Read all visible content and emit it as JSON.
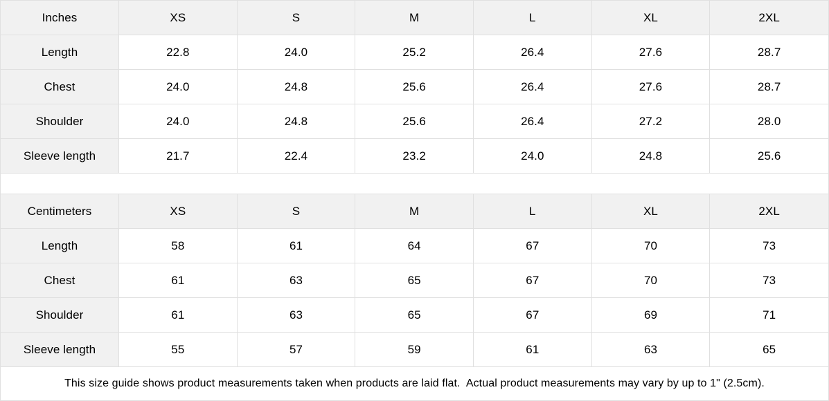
{
  "colors": {
    "header_bg": "#f1f1f1",
    "label_column_bg": "#f1f1f1",
    "cell_bg": "#ffffff",
    "border": "#e0e0e0",
    "text": "#000000"
  },
  "size_guide": {
    "inches": {
      "unit_label": "Inches",
      "sizes": [
        "XS",
        "S",
        "M",
        "L",
        "XL",
        "2XL"
      ],
      "rows": [
        {
          "label": "Length",
          "values": [
            "22.8",
            "24.0",
            "25.2",
            "26.4",
            "27.6",
            "28.7"
          ]
        },
        {
          "label": "Chest",
          "values": [
            "24.0",
            "24.8",
            "25.6",
            "26.4",
            "27.6",
            "28.7"
          ]
        },
        {
          "label": "Shoulder",
          "values": [
            "24.0",
            "24.8",
            "25.6",
            "26.4",
            "27.2",
            "28.0"
          ]
        },
        {
          "label": "Sleeve length",
          "values": [
            "21.7",
            "22.4",
            "23.2",
            "24.0",
            "24.8",
            "25.6"
          ]
        }
      ]
    },
    "centimeters": {
      "unit_label": "Centimeters",
      "sizes": [
        "XS",
        "S",
        "M",
        "L",
        "XL",
        "2XL"
      ],
      "rows": [
        {
          "label": "Length",
          "values": [
            "58",
            "61",
            "64",
            "67",
            "70",
            "73"
          ]
        },
        {
          "label": "Chest",
          "values": [
            "61",
            "63",
            "65",
            "67",
            "70",
            "73"
          ]
        },
        {
          "label": "Shoulder",
          "values": [
            "61",
            "63",
            "65",
            "67",
            "69",
            "71"
          ]
        },
        {
          "label": "Sleeve length",
          "values": [
            "55",
            "57",
            "59",
            "61",
            "63",
            "65"
          ]
        }
      ]
    },
    "footnote": "This size guide shows product measurements taken when products are laid flat.  Actual product measurements may vary by up to 1\" (2.5cm)."
  }
}
